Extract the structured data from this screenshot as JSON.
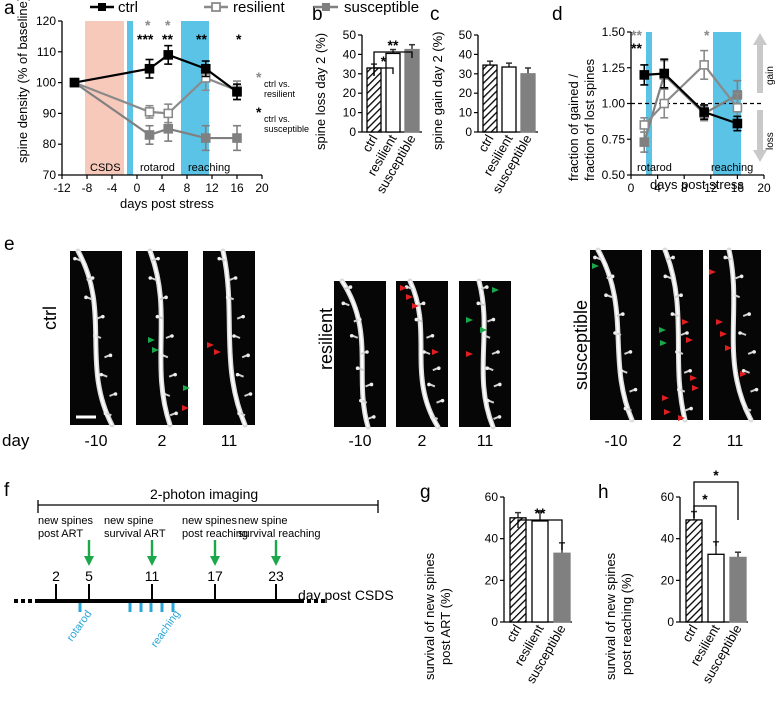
{
  "panels": {
    "a": "a",
    "b": "b",
    "c": "c",
    "d": "d",
    "e": "e",
    "f": "f",
    "g": "g",
    "h": "h"
  },
  "colors": {
    "ctrl": "#000000",
    "resilient": "#8a8a8a",
    "susceptible": "#808080",
    "csds": "#f7c9bb",
    "imaging": "#5bc3e6",
    "red": "#e02020",
    "green": "#1aa84a",
    "blue": "#29a7d8"
  },
  "legend": {
    "ctrl": "ctrl",
    "resilient": "resilient",
    "susceptible": "susceptible"
  },
  "a": {
    "ylabel": "spine density (% of baseline)",
    "xlabel": "days post stress",
    "csds_label": "CSDS",
    "rotarod_label": "rotarod",
    "reaching_label": "reaching",
    "note_res_star": "*",
    "note_res": "ctrl vs. resilient",
    "note_sus_star": "*",
    "note_sus": "ctrl vs. susceptible",
    "sig_res": [
      "*",
      "*"
    ],
    "sig_sus": [
      "***",
      "**",
      "**",
      "*"
    ]
  },
  "b": {
    "ylabel": "spine loss day 2 (%)",
    "sig1": "*",
    "sig2": "**"
  },
  "c": {
    "ylabel": "spine gain day 2 (%)"
  },
  "d": {
    "ylabel1": "fraction of gained /",
    "ylabel2": "fraction of lost spines",
    "xlabel": "days post stress",
    "rotarod_label": "rotarod",
    "reaching_label": "reaching",
    "gain": "gain",
    "loss": "loss",
    "sig_res": "**",
    "sig_sus": "**",
    "sig_res2": "*"
  },
  "e": {
    "groups": [
      "ctrl",
      "resilient",
      "susceptible"
    ],
    "day_label": "day",
    "days": [
      "-10",
      "2",
      "11"
    ]
  },
  "f": {
    "title": "2-photon imaging",
    "events": [
      "new spines post ART",
      "new spine survival ART",
      "new spines post reaching",
      "new spine survival reaching"
    ],
    "event_lines": [
      [
        "new spines",
        "post ART"
      ],
      [
        "new spine",
        "survival ART"
      ],
      [
        "new spines",
        "post reaching"
      ],
      [
        "new spine",
        "survival reaching"
      ]
    ],
    "days": [
      "2",
      "5",
      "11",
      "17",
      "23"
    ],
    "axis_label": "day post CSDS",
    "rotarod": "rotarod",
    "reaching": "reaching"
  },
  "g": {
    "ylabel1": "survival of new spines",
    "ylabel2": "post ART (%)",
    "sig": "**"
  },
  "h": {
    "ylabel1": "survival of new spines",
    "ylabel2": "post reaching (%)",
    "sig1": "*",
    "sig2": "*"
  },
  "chart_data": [
    {
      "id": "a",
      "type": "line",
      "xlabel": "days post stress",
      "ylabel": "spine density (% of baseline)",
      "xlim": [
        -12,
        20
      ],
      "ylim": [
        70,
        120
      ],
      "xticks": [
        "-12",
        "-8",
        "-4",
        "0",
        "4",
        "8",
        "12",
        "16",
        "20"
      ],
      "yticks": [
        "70",
        "80",
        "90",
        "100",
        "110",
        "120"
      ],
      "series": [
        {
          "name": "ctrl",
          "x": [
            -10,
            2,
            5,
            11,
            16
          ],
          "y": [
            100,
            104.5,
            109,
            104.5,
            97
          ],
          "err": [
            0.8,
            3,
            3,
            2.5,
            2.5
          ]
        },
        {
          "name": "resilient",
          "x": [
            -10,
            2,
            5,
            11,
            16
          ],
          "y": [
            100,
            90.5,
            90,
            101.5,
            97.5
          ],
          "err": [
            0.8,
            2,
            3,
            4,
            3
          ]
        },
        {
          "name": "susceptible",
          "x": [
            -10,
            2,
            5,
            11,
            16
          ],
          "y": [
            100,
            83,
            85,
            82,
            82
          ],
          "err": [
            0.8,
            3,
            4,
            4,
            4
          ]
        }
      ]
    },
    {
      "id": "b",
      "type": "bar",
      "ylabel": "spine loss day 2 (%)",
      "categories": [
        "ctrl",
        "resilient",
        "susceptible"
      ],
      "values": [
        33,
        40.5,
        42.5
      ],
      "err": [
        2,
        2,
        2.5
      ],
      "ylim": [
        0,
        50
      ],
      "yticks": [
        "0",
        "10",
        "20",
        "30",
        "40",
        "50"
      ]
    },
    {
      "id": "c",
      "type": "bar",
      "ylabel": "spine gain day 2 (%)",
      "categories": [
        "ctrl",
        "resilient",
        "susceptible"
      ],
      "values": [
        34.5,
        33.5,
        30
      ],
      "err": [
        2,
        2,
        3
      ],
      "ylim": [
        0,
        50
      ],
      "yticks": [
        "0",
        "10",
        "20",
        "30",
        "40",
        "50"
      ]
    },
    {
      "id": "d",
      "type": "line",
      "ylabel": "fraction of gained / fraction of lost spines",
      "xlabel": "days post stress",
      "xlim": [
        0,
        20
      ],
      "ylim": [
        0.5,
        1.5
      ],
      "xticks": [
        "0",
        "4",
        "8",
        "12",
        "16",
        "20"
      ],
      "yticks": [
        "0.50",
        "0.75",
        "1.00",
        "1.25",
        "1.50"
      ],
      "series": [
        {
          "name": "ctrl",
          "x": [
            2,
            5,
            11,
            16
          ],
          "y": [
            1.2,
            1.21,
            0.94,
            0.86
          ],
          "err": [
            0.07,
            0.1,
            0.05,
            0.05
          ]
        },
        {
          "name": "resilient",
          "x": [
            2,
            5,
            11,
            16
          ],
          "y": [
            0.85,
            1.0,
            1.27,
            0.97
          ],
          "err": [
            0.05,
            0.1,
            0.1,
            0.1
          ]
        },
        {
          "name": "susceptible",
          "x": [
            2,
            5,
            11,
            16
          ],
          "y": [
            0.73,
            1.2,
            0.93,
            1.06
          ],
          "err": [
            0.07,
            0.1,
            0.05,
            0.1
          ]
        }
      ]
    },
    {
      "id": "g",
      "type": "bar",
      "ylabel": "survival of new spines post ART (%)",
      "categories": [
        "ctrl",
        "resilient",
        "susceptible"
      ],
      "values": [
        50,
        48.5,
        33
      ],
      "err": [
        2.5,
        4.5,
        5
      ],
      "ylim": [
        0,
        60
      ],
      "yticks": [
        "0",
        "20",
        "40",
        "60"
      ]
    },
    {
      "id": "h",
      "type": "bar",
      "ylabel": "survival of new spines post reaching (%)",
      "categories": [
        "ctrl",
        "resilient",
        "susceptible"
      ],
      "values": [
        49,
        32.5,
        31
      ],
      "err": [
        4,
        6,
        2.5
      ],
      "ylim": [
        0,
        60
      ],
      "yticks": [
        "0",
        "20",
        "40",
        "60"
      ]
    }
  ]
}
